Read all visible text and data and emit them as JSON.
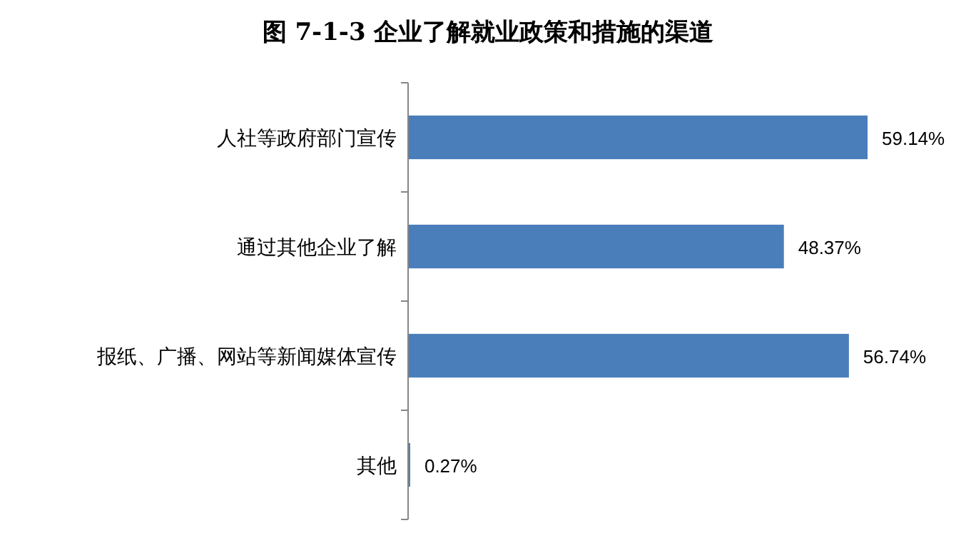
{
  "chart_data": {
    "type": "bar",
    "orientation": "horizontal",
    "title": "图 7-1-3 企业了解就业政策和措施的渠道",
    "categories": [
      "人社等政府部门宣传",
      "通过其他企业了解",
      "报纸、广播、网站等新闻媒体宣传",
      "其他"
    ],
    "values": [
      59.14,
      48.37,
      56.74,
      0.27
    ],
    "value_labels": [
      "59.14%",
      "48.37%",
      "56.74%",
      "0.27%"
    ],
    "color": "#4a7ebb"
  }
}
